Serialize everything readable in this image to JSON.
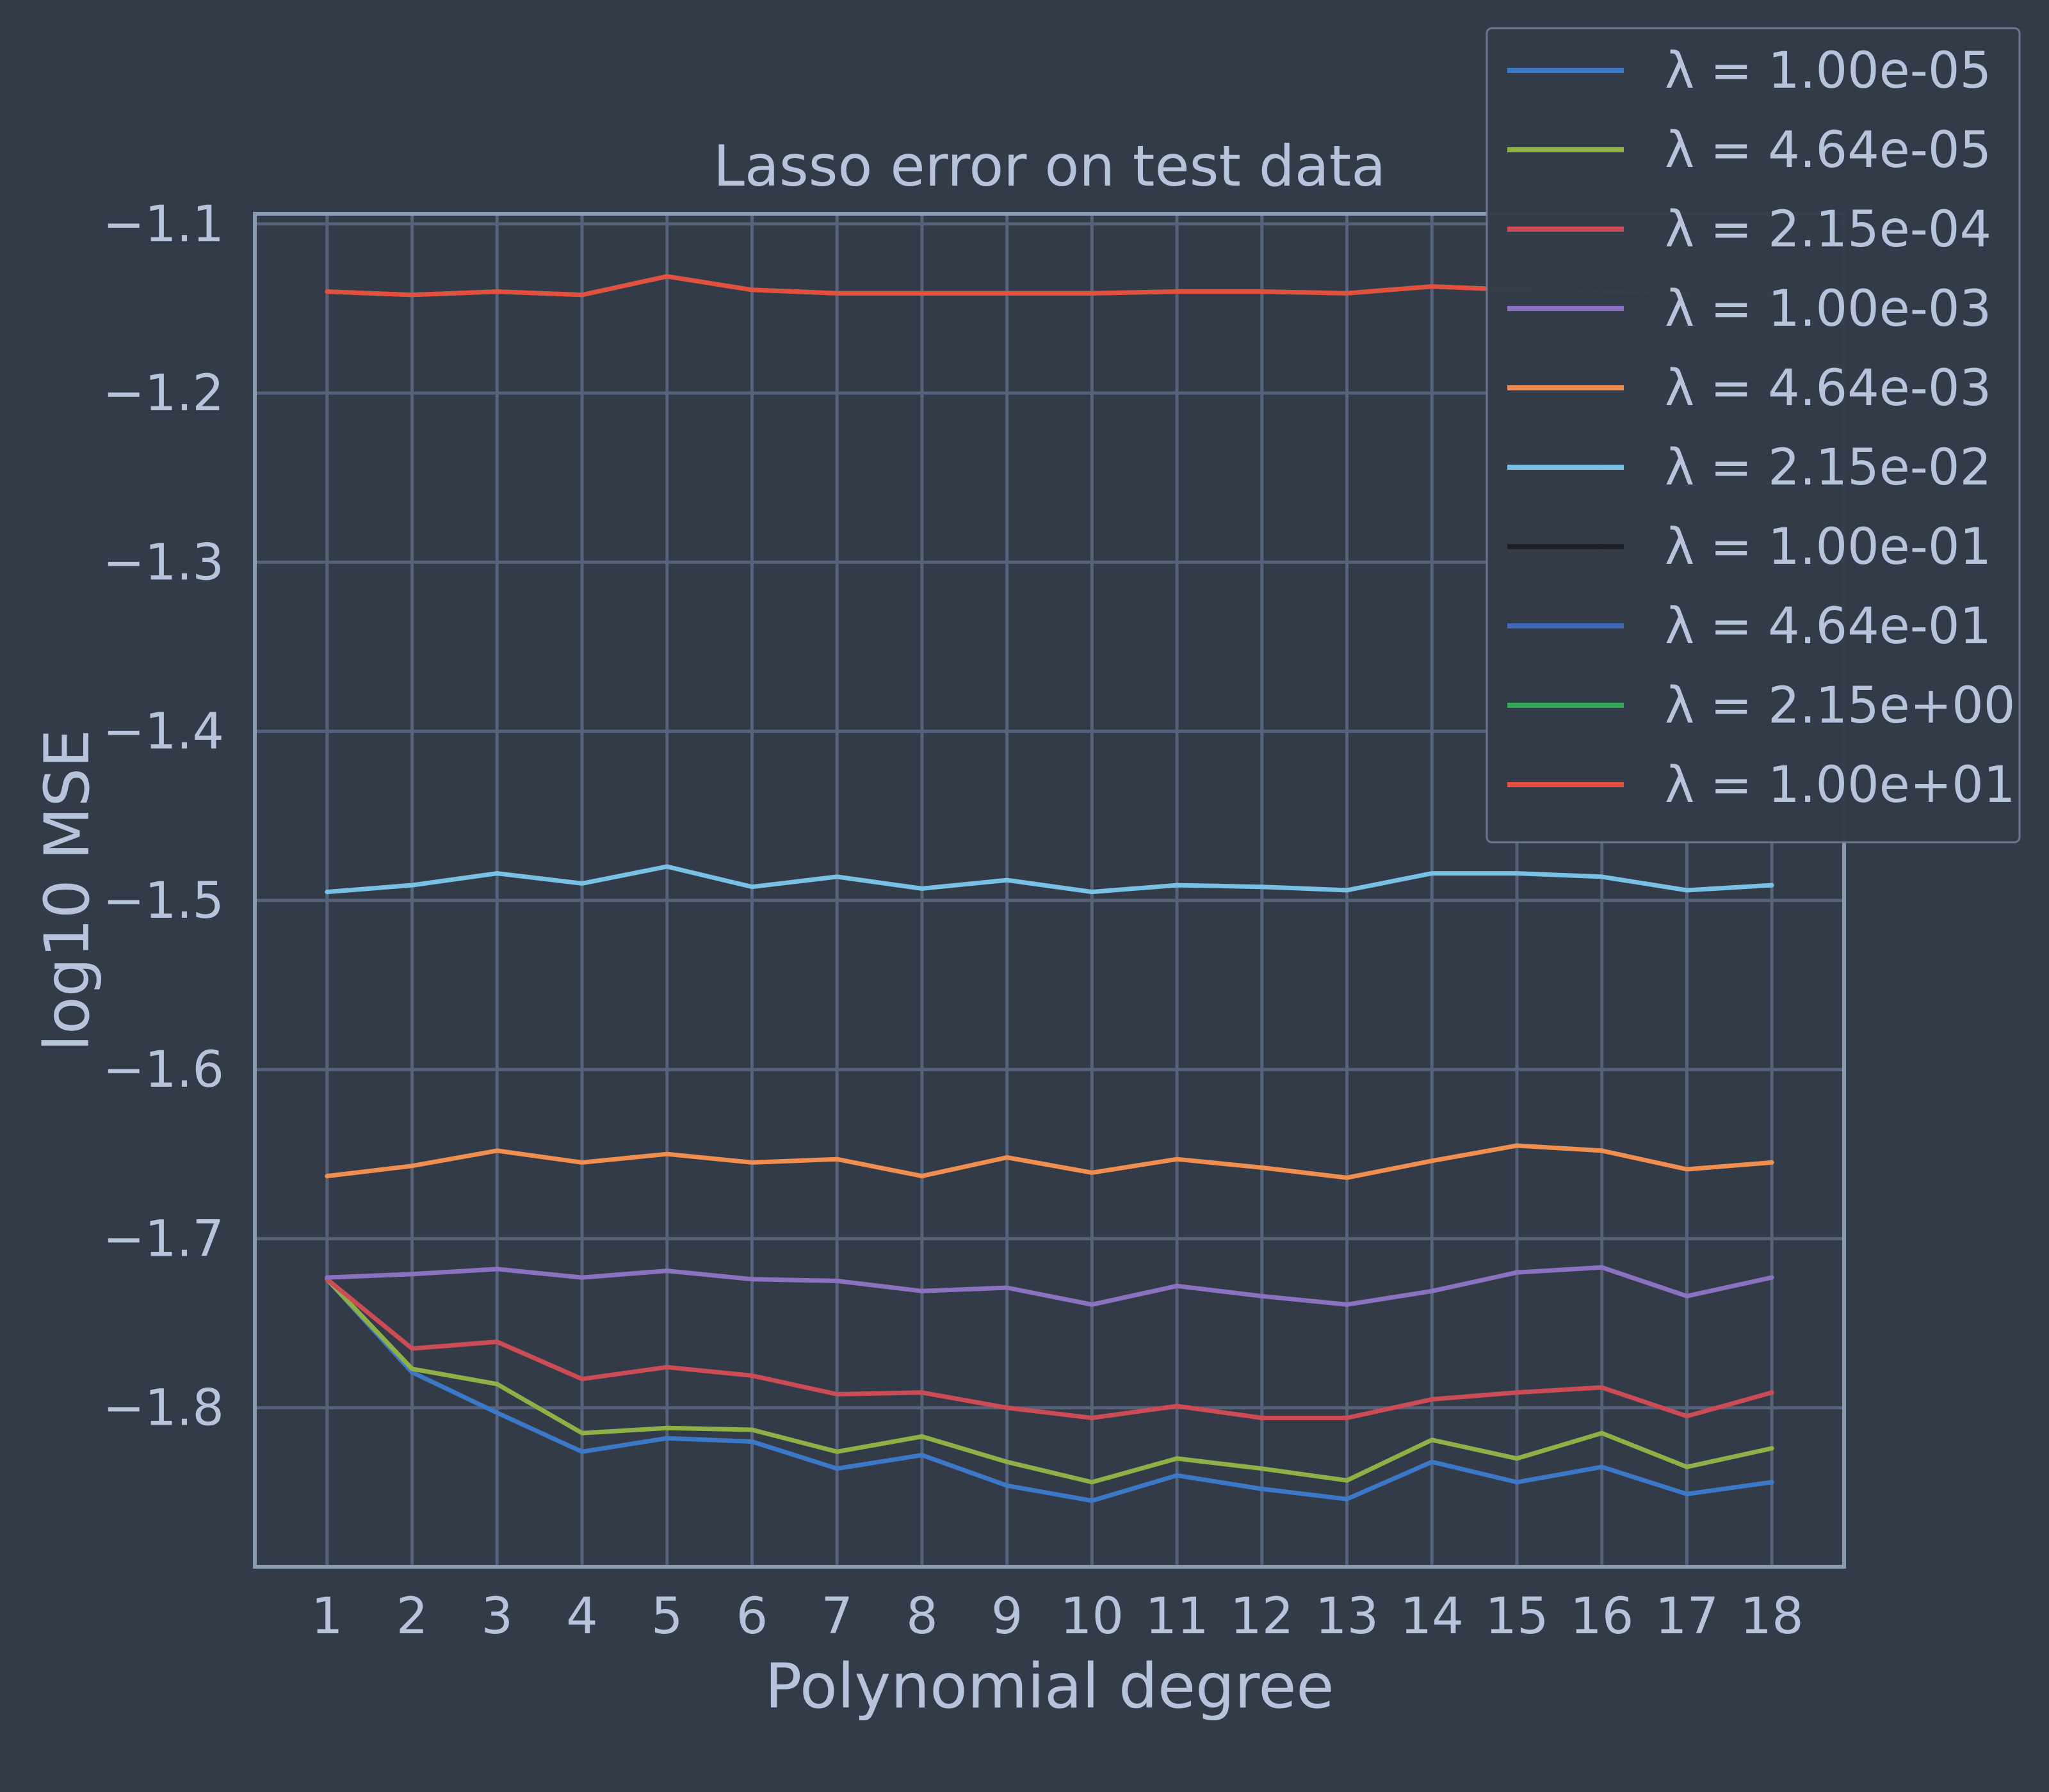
{
  "chart_data": {
    "type": "line",
    "title": "Lasso error on test data",
    "xlabel": "Polynomial degree",
    "ylabel": "log10 MSE",
    "x": [
      1,
      2,
      3,
      4,
      5,
      6,
      7,
      8,
      9,
      10,
      11,
      12,
      13,
      14,
      15,
      16,
      17,
      18
    ],
    "xlim": [
      0.15,
      18.85
    ],
    "ylim": [
      -1.894,
      -1.094
    ],
    "yticks": [
      -1.1,
      -1.2,
      -1.3,
      -1.4,
      -1.5,
      -1.6,
      -1.7,
      -1.8
    ],
    "ytick_labels": [
      "−1.1",
      "−1.2",
      "−1.3",
      "−1.4",
      "−1.5",
      "−1.6",
      "−1.7",
      "−1.8"
    ],
    "grid": true,
    "legend_position": "top-right",
    "series": [
      {
        "name": "λ = 1.00e-05",
        "color": "#3b78c8",
        "values": [
          -1.724,
          -1.779,
          -1.803,
          -1.826,
          -1.818,
          -1.82,
          -1.836,
          -1.828,
          -1.846,
          -1.855,
          -1.84,
          -1.848,
          -1.854,
          -1.832,
          -1.844,
          -1.835,
          -1.851,
          -1.844
        ]
      },
      {
        "name": "λ = 4.64e-05",
        "color": "#8fb046",
        "values": [
          -1.724,
          -1.777,
          -1.786,
          -1.815,
          -1.812,
          -1.813,
          -1.826,
          -1.817,
          -1.832,
          -1.844,
          -1.83,
          -1.836,
          -1.843,
          -1.819,
          -1.83,
          -1.815,
          -1.835,
          -1.824
        ]
      },
      {
        "name": "λ = 2.15e-04",
        "color": "#cc4c55",
        "values": [
          -1.724,
          -1.765,
          -1.761,
          -1.783,
          -1.776,
          -1.781,
          -1.792,
          -1.791,
          -1.8,
          -1.806,
          -1.799,
          -1.806,
          -1.806,
          -1.795,
          -1.791,
          -1.788,
          -1.805,
          -1.791
        ]
      },
      {
        "name": "λ = 1.00e-03",
        "color": "#8a72c0",
        "values": [
          -1.723,
          -1.721,
          -1.718,
          -1.723,
          -1.719,
          -1.724,
          -1.725,
          -1.731,
          -1.729,
          -1.739,
          -1.728,
          -1.734,
          -1.739,
          -1.731,
          -1.72,
          -1.717,
          -1.734,
          -1.723
        ]
      },
      {
        "name": "λ = 4.64e-03",
        "color": "#f08e4f",
        "values": [
          -1.663,
          -1.657,
          -1.648,
          -1.655,
          -1.65,
          -1.655,
          -1.653,
          -1.663,
          -1.652,
          -1.661,
          -1.653,
          -1.658,
          -1.664,
          -1.654,
          -1.645,
          -1.648,
          -1.659,
          -1.655
        ]
      },
      {
        "name": "λ = 2.15e-02",
        "color": "#78c0e4",
        "values": [
          -1.495,
          -1.491,
          -1.484,
          -1.49,
          -1.48,
          -1.492,
          -1.486,
          -1.493,
          -1.488,
          -1.495,
          -1.491,
          -1.492,
          -1.494,
          -1.484,
          -1.484,
          -1.486,
          -1.494,
          -1.491
        ]
      },
      {
        "name": "λ = 1.00e-01",
        "color": "#1e2026",
        "values": [
          -1.14,
          -1.142,
          -1.14,
          -1.142,
          -1.131,
          -1.139,
          -1.141,
          -1.141,
          -1.141,
          -1.141,
          -1.14,
          -1.14,
          -1.141,
          -1.137,
          -1.139,
          -1.14,
          -1.141,
          -1.141
        ]
      },
      {
        "name": "λ = 4.64e-01",
        "color": "#4068b8",
        "values": [
          -1.14,
          -1.142,
          -1.14,
          -1.142,
          -1.131,
          -1.139,
          -1.141,
          -1.141,
          -1.141,
          -1.141,
          -1.14,
          -1.14,
          -1.141,
          -1.137,
          -1.139,
          -1.14,
          -1.141,
          -1.141
        ]
      },
      {
        "name": "λ = 2.15e+00",
        "color": "#2eaa58",
        "values": [
          -1.14,
          -1.142,
          -1.14,
          -1.142,
          -1.131,
          -1.139,
          -1.141,
          -1.141,
          -1.141,
          -1.141,
          -1.14,
          -1.14,
          -1.141,
          -1.137,
          -1.139,
          -1.14,
          -1.141,
          -1.141
        ]
      },
      {
        "name": "λ = 1.00e+01",
        "color": "#e3503e",
        "values": [
          -1.14,
          -1.142,
          -1.14,
          -1.142,
          -1.131,
          -1.139,
          -1.141,
          -1.141,
          -1.141,
          -1.141,
          -1.14,
          -1.14,
          -1.141,
          -1.137,
          -1.139,
          -1.14,
          -1.141,
          -1.141
        ]
      }
    ]
  }
}
